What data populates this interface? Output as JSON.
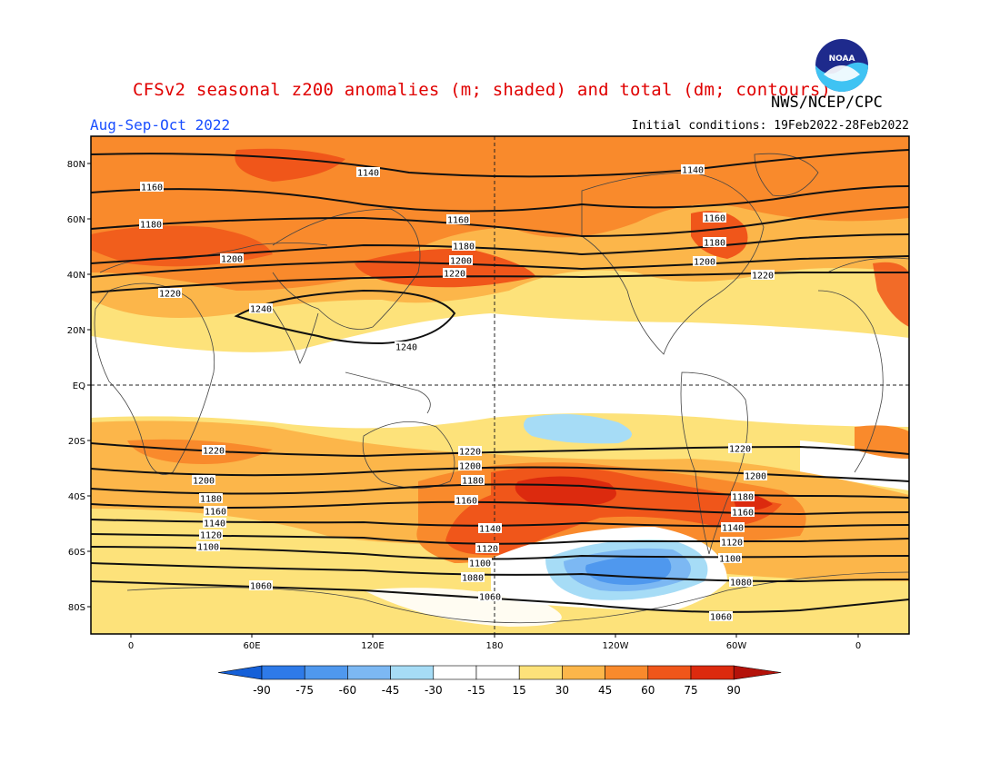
{
  "header": {
    "title": "CFSv2 seasonal z200 anomalies (m; shaded) and total (dm; contours)",
    "agency": "NWS/NCEP/CPC",
    "season": "Aug-Sep-Oct 2022",
    "initial_conditions": "Initial conditions: 19Feb2022-28Feb2022",
    "logo_text": "NOAA"
  },
  "map": {
    "lat_ticks": [
      "80N",
      "60N",
      "40N",
      "20N",
      "EQ",
      "20S",
      "40S",
      "60S",
      "80S"
    ],
    "lon_ticks": [
      "0",
      "60E",
      "120E",
      "180",
      "120W",
      "60W",
      "0"
    ],
    "contours": [
      {
        "value": "1140",
        "labels": [
          [
            405,
            190
          ],
          [
            762,
            187
          ]
        ]
      },
      {
        "value": "1160",
        "labels": [
          [
            167,
            206
          ],
          [
            504,
            242
          ],
          [
            786,
            240
          ]
        ]
      },
      {
        "value": "1180",
        "labels": [
          [
            166,
            247
          ],
          [
            510,
            271
          ],
          [
            786,
            267
          ]
        ]
      },
      {
        "value": "1200",
        "labels": [
          [
            255,
            285
          ],
          [
            507,
            287
          ],
          [
            775,
            288
          ]
        ]
      },
      {
        "value": "1220",
        "labels": [
          [
            187,
            323
          ],
          [
            500,
            301
          ],
          [
            839,
            303
          ]
        ]
      },
      {
        "value": "1240",
        "labels": [
          [
            287,
            340
          ],
          [
            447,
            382
          ]
        ]
      },
      {
        "value": "1220",
        "labels": [
          [
            235,
            496
          ],
          [
            517,
            497
          ],
          [
            814,
            494
          ]
        ]
      },
      {
        "value": "1200",
        "labels": [
          [
            224,
            529
          ],
          [
            517,
            513
          ],
          [
            831,
            524
          ]
        ]
      },
      {
        "value": "1180",
        "labels": [
          [
            232,
            549
          ],
          [
            520,
            529
          ],
          [
            817,
            547
          ]
        ]
      },
      {
        "value": "1160",
        "labels": [
          [
            237,
            563
          ],
          [
            513,
            551
          ],
          [
            817,
            564
          ]
        ]
      },
      {
        "value": "1140",
        "labels": [
          [
            236,
            576
          ],
          [
            539,
            582
          ],
          [
            806,
            581
          ]
        ]
      },
      {
        "value": "1120",
        "labels": [
          [
            232,
            589
          ],
          [
            536,
            604
          ],
          [
            805,
            597
          ]
        ]
      },
      {
        "value": "1100",
        "labels": [
          [
            229,
            602
          ],
          [
            528,
            620
          ],
          [
            803,
            615
          ]
        ]
      },
      {
        "value": "1080",
        "labels": [
          [
            520,
            636
          ],
          [
            815,
            641
          ]
        ]
      },
      {
        "value": "1060",
        "labels": [
          [
            287,
            645
          ],
          [
            539,
            657
          ],
          [
            793,
            679
          ]
        ]
      }
    ]
  },
  "colorbar": {
    "labels": [
      "-90",
      "-75",
      "-60",
      "-45",
      "-30",
      "-15",
      "15",
      "30",
      "45",
      "60",
      "75",
      "90"
    ],
    "colors": [
      "#1560d8",
      "#2e7ae8",
      "#4f98ee",
      "#7cb8f3",
      "#a6dcf6",
      "#ffffff",
      "#ffffff",
      "#fde27a",
      "#fcb64a",
      "#f98a2c",
      "#f0561a",
      "#dc2a0e",
      "#b4120a"
    ]
  }
}
